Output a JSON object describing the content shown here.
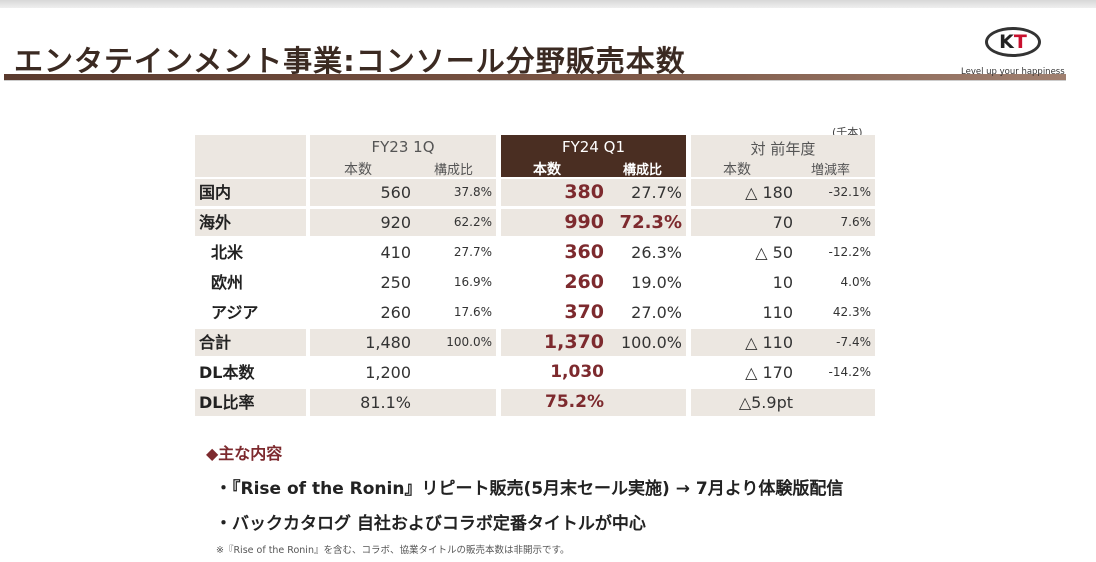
{
  "header": {
    "title": "エンタテインメント事業:コンソール分野販売本数",
    "logo_k": "K",
    "logo_t": "T",
    "tagline": "Level up your happiness"
  },
  "table": {
    "unit": "(千本)",
    "columns": {
      "fy23": {
        "title": "FY23 1Q",
        "units": "本数",
        "share": "構成比"
      },
      "fy24": {
        "title": "FY24 Q1",
        "units": "本数",
        "share": "構成比"
      },
      "yoy": {
        "title": "対 前年度",
        "units": "本数",
        "rate": "増減率"
      }
    },
    "rows": [
      {
        "label": "国内",
        "fy23_units": "560",
        "fy23_share": "37.8%",
        "fy24_units": "380",
        "fy24_share": "27.7%",
        "yoy_units": "△ 180",
        "yoy_rate": "-32.1%"
      },
      {
        "label": "海外",
        "fy23_units": "920",
        "fy23_share": "62.2%",
        "fy24_units": "990",
        "fy24_share": "72.3%",
        "yoy_units": "70",
        "yoy_rate": "7.6%"
      },
      {
        "label": "北米",
        "fy23_units": "410",
        "fy23_share": "27.7%",
        "fy24_units": "360",
        "fy24_share": "26.3%",
        "yoy_units": "△ 50",
        "yoy_rate": "-12.2%"
      },
      {
        "label": "欧州",
        "fy23_units": "250",
        "fy23_share": "16.9%",
        "fy24_units": "260",
        "fy24_share": "19.0%",
        "yoy_units": "10",
        "yoy_rate": "4.0%"
      },
      {
        "label": "アジア",
        "fy23_units": "260",
        "fy23_share": "17.6%",
        "fy24_units": "370",
        "fy24_share": "27.0%",
        "yoy_units": "110",
        "yoy_rate": "42.3%"
      },
      {
        "label": "合計",
        "fy23_units": "1,480",
        "fy23_share": "100.0%",
        "fy24_units": "1,370",
        "fy24_share": "100.0%",
        "yoy_units": "△ 110",
        "yoy_rate": "-7.4%"
      },
      {
        "label": "DL本数",
        "fy23_units": "1,200",
        "fy23_share": "",
        "fy24_units": "1,030",
        "fy24_share": "",
        "yoy_units": "△ 170",
        "yoy_rate": "-14.2%"
      },
      {
        "label": "DL比率",
        "fy23_units": "81.1%",
        "fy23_share": "",
        "fy24_units": "75.2%",
        "fy24_share": "",
        "yoy_units": "△5.9pt",
        "yoy_rate": ""
      }
    ]
  },
  "notes": {
    "heading": "◆主な内容",
    "items": [
      "・『Rise of the Ronin』リピート販売(5月末セール実施) → 7月より体験版配信",
      "・バックカタログ 自社およびコラボ定番タイトルが中心"
    ],
    "footnote": "※『Rise of the Ronin』を含む、コラボ、協業タイトルの販売本数は非開示です。"
  },
  "colors": {
    "brand_dark": "#4a2e22",
    "accent_red": "#7d2a2e",
    "row_shade": "#ece7e1",
    "logo_red": "#c8102e"
  }
}
